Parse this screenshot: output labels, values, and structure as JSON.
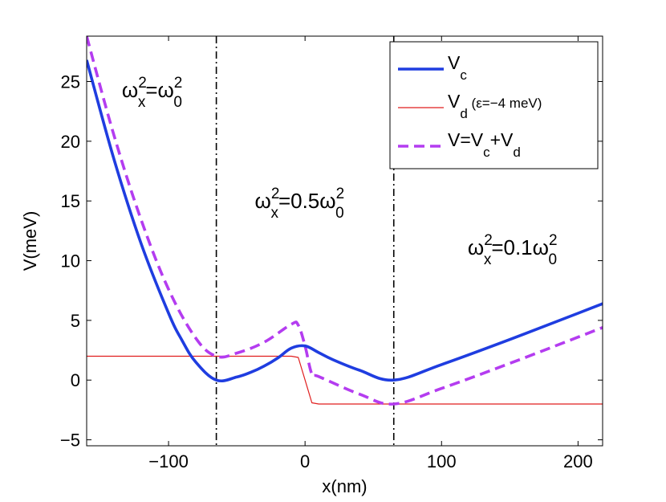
{
  "chart_data": {
    "type": "line",
    "title": "",
    "xlabel": "x(nm)",
    "ylabel": "V(meV)",
    "xlim": [
      -160,
      218
    ],
    "ylim": [
      -5.5,
      28.8
    ],
    "xticks": [
      -100,
      0,
      100,
      200
    ],
    "xtick_labels": [
      "−100",
      "0",
      "100",
      "200"
    ],
    "yticks": [
      -5,
      0,
      5,
      10,
      15,
      20,
      25
    ],
    "ytick_labels": [
      "−5",
      "0",
      "5",
      "10",
      "15",
      "20",
      "25"
    ],
    "grid": false,
    "boundaries": [
      -65,
      65
    ],
    "model": {
      "x0": 65,
      "omega_ratio_left": 1.0,
      "omega_ratio_mid": 0.5,
      "omega_ratio_right": 0.1,
      "detuning": -4
    },
    "series": [
      {
        "name": "V_c",
        "label_main": "V",
        "label_sub": "c",
        "label_tail": "",
        "color": "#1f3de0",
        "style": "solid",
        "x": [
          -160,
          -140,
          -120,
          -100,
          -90,
          -80,
          -65,
          -50,
          -40,
          -30,
          -20,
          -10,
          0,
          10,
          20,
          40,
          65,
          100,
          150,
          200,
          218
        ],
        "y": [
          26.8,
          18.5,
          11.4,
          5.6,
          3.3,
          1.5,
          0.0,
          0.26,
          0.64,
          1.17,
          1.85,
          2.68,
          2.86,
          2.3,
          1.73,
          0.82,
          0.0,
          1.3,
          3.4,
          5.6,
          6.4
        ]
      },
      {
        "name": "V_d",
        "label_main": "V",
        "label_sub": "d",
        "label_tail": " (ε=−4 meV)",
        "color": "#e01e1e",
        "style": "thin",
        "x": [
          -160,
          -10,
          -5,
          0,
          5,
          10,
          100,
          218
        ],
        "y": [
          2,
          2,
          1.9,
          0,
          -1.9,
          -2,
          -2,
          -2
        ]
      },
      {
        "name": "V = V_c + V_d",
        "label_main": "V=V",
        "label_sub": "c",
        "label_tail": "+V",
        "label_sub2": "d",
        "color": "#b43cf0",
        "style": "dashed",
        "x": [
          -160,
          -140,
          -120,
          -100,
          -80,
          -65,
          -50,
          -30,
          -10,
          -5,
          0,
          5,
          10,
          40,
          65,
          100,
          150,
          200,
          218
        ],
        "y": [
          28.8,
          20.5,
          13.4,
          7.6,
          3.5,
          2.0,
          2.26,
          3.17,
          4.68,
          4.6,
          2.86,
          0.5,
          0.3,
          -1.18,
          -2.0,
          -0.7,
          1.4,
          3.6,
          4.4
        ]
      }
    ],
    "annotations": [
      {
        "id": "left",
        "base": "ω",
        "sup1": "2",
        "sub1": "x",
        "mid": "=ω",
        "sup2": "2",
        "sub2": "0",
        "x": -112,
        "y": 23.7
      },
      {
        "id": "mid",
        "base": "ω",
        "sup1": "2",
        "sub1": "x",
        "mid": "=0.5ω",
        "sup2": "2",
        "sub2": "0",
        "x": -4,
        "y": 14.4
      },
      {
        "id": "right",
        "base": "ω",
        "sup1": "2",
        "sub1": "x",
        "mid": "=0.1ω",
        "sup2": "2",
        "sub2": "0",
        "x": 152,
        "y": 10.5
      }
    ],
    "legend_position": "top-right"
  }
}
